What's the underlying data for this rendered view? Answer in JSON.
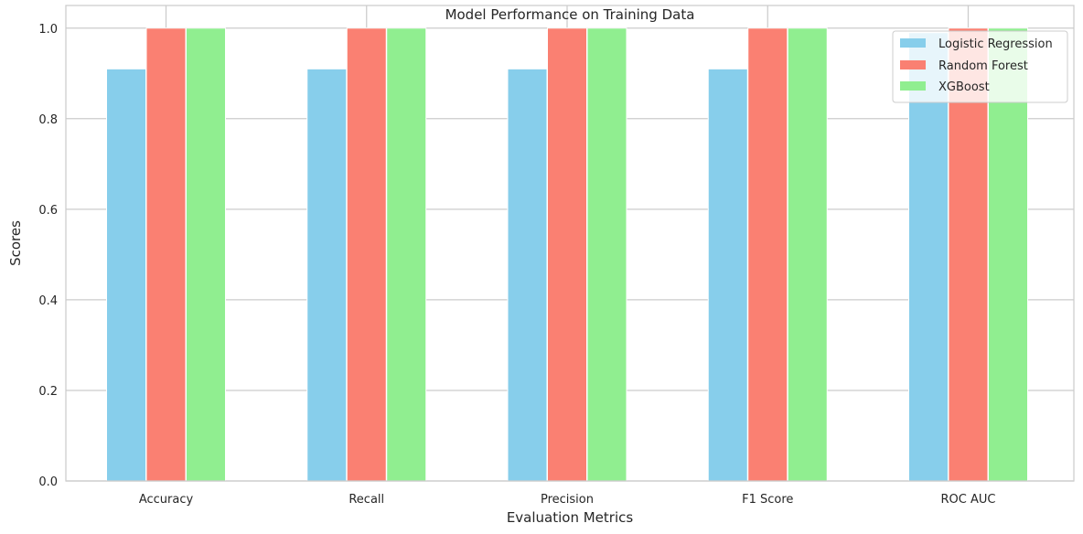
{
  "chart_data": {
    "type": "bar",
    "title": "Model Performance on Training Data",
    "xlabel": "Evaluation Metrics",
    "ylabel": "Scores",
    "categories": [
      "Accuracy",
      "Recall",
      "Precision",
      "F1 Score",
      "ROC AUC"
    ],
    "series": [
      {
        "name": "Logistic Regression",
        "color": "#87ceeb",
        "values": [
          0.91,
          0.91,
          0.91,
          0.91,
          0.99
        ]
      },
      {
        "name": "Random Forest",
        "color": "#fa8072",
        "values": [
          1.0,
          1.0,
          1.0,
          1.0,
          1.0
        ]
      },
      {
        "name": "XGBoost",
        "color": "#90ee90",
        "values": [
          1.0,
          1.0,
          1.0,
          1.0,
          1.0
        ]
      }
    ],
    "ylim": [
      0,
      1.05
    ],
    "yticks": [
      "0.0",
      "0.2",
      "0.4",
      "0.6",
      "0.8",
      "1.0"
    ],
    "grid": true,
    "legend_position": "top-right"
  }
}
